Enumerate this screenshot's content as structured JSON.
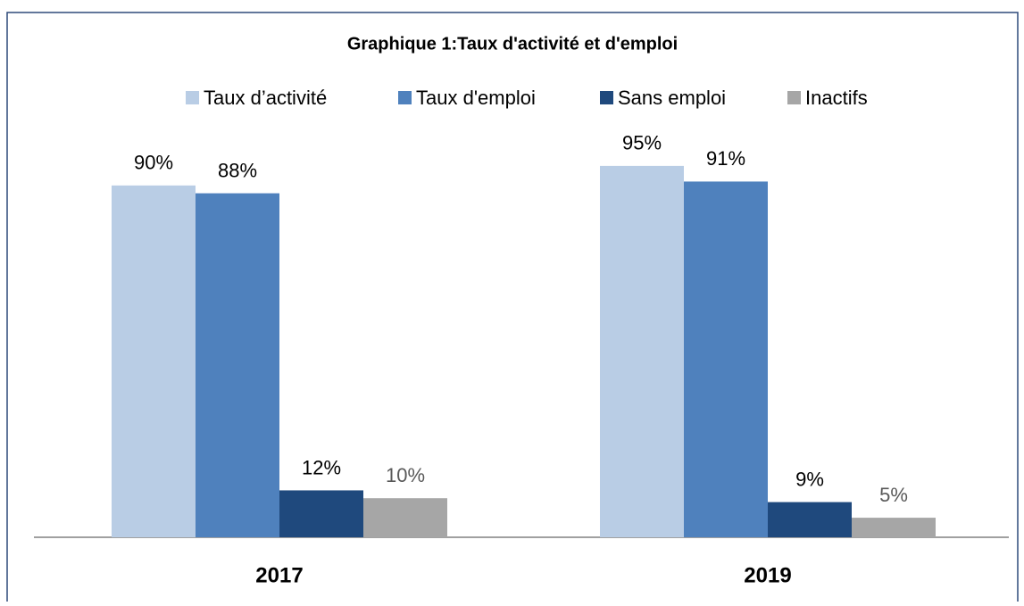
{
  "chart_data": {
    "type": "bar",
    "title": "Graphique 1:Taux d'activité et d'emploi",
    "categories": [
      "2017",
      "2019"
    ],
    "series": [
      {
        "name": "Taux d’activité",
        "color": "#b9cde5",
        "values": [
          90,
          95
        ],
        "value_labels": [
          "90%",
          "95%"
        ]
      },
      {
        "name": "Taux d'emploi",
        "color": "#4f81bd",
        "values": [
          88,
          91
        ],
        "value_labels": [
          "88%",
          "91%"
        ]
      },
      {
        "name": "Sans emploi",
        "color": "#1f497d",
        "values": [
          12,
          9
        ],
        "value_labels": [
          "12%",
          "9%"
        ]
      },
      {
        "name": "Inactifs",
        "color": "#a6a6a6",
        "values": [
          10,
          5
        ],
        "value_labels": [
          "10%",
          "5%"
        ]
      }
    ],
    "legend": "top"
  }
}
